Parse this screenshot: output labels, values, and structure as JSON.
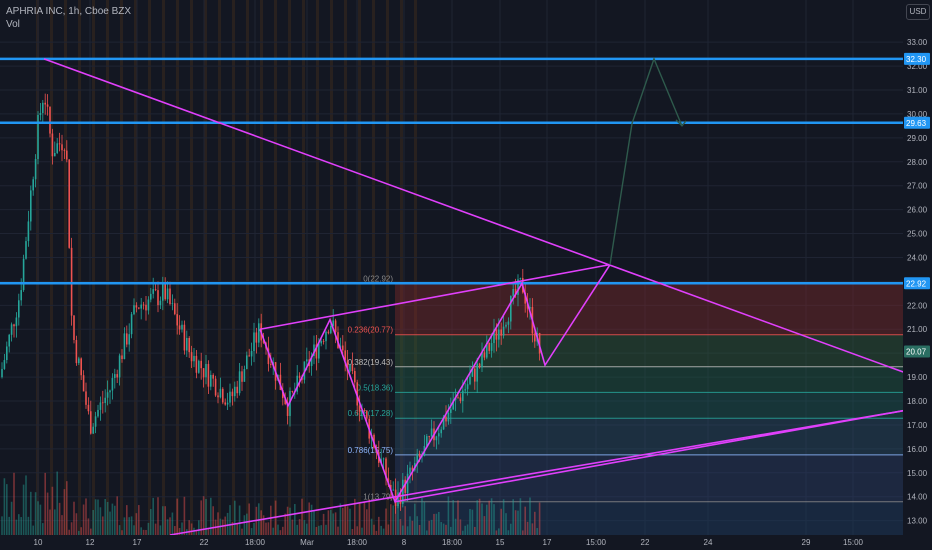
{
  "header": {
    "symbol_line": "APHRIA INC, 1h, Cboe BZX",
    "volume_label": "Vol",
    "currency": "USD"
  },
  "colors": {
    "background": "#131722",
    "grid": "#1f2433",
    "up": "#26a69a",
    "down": "#ef5350",
    "pattern_lines": "#e040fb",
    "horizontal_levels": "#2196f3",
    "projection": "#2e5a4c",
    "axis_text": "#b2b5be"
  },
  "chart_data": {
    "type": "candlestick",
    "symbol": "APHRIA INC",
    "interval": "1h",
    "exchange": "Cboe BZX",
    "ylim": [
      12.4,
      33.8
    ],
    "y_ticks": [
      "13.00",
      "14.00",
      "15.00",
      "16.00",
      "17.00",
      "18.00",
      "19.00",
      "20.00",
      "21.00",
      "22.00",
      "23.00",
      "24.00",
      "25.00",
      "26.00",
      "27.00",
      "28.00",
      "29.00",
      "30.00",
      "31.00",
      "32.00",
      "33.00"
    ],
    "x_ticks": [
      "10",
      "12",
      "17",
      "22",
      "18:00",
      "Mar",
      "18:00",
      "8",
      "18:00",
      "15",
      "17",
      "15:00",
      "22",
      "24",
      "29",
      "15:00"
    ],
    "current_price": "20.07",
    "horizontal_levels": [
      {
        "price": 32.3,
        "label": "32.30"
      },
      {
        "price": 29.63,
        "label": "29.63"
      },
      {
        "price": 22.92,
        "label": "22.92"
      }
    ],
    "fibonacci": [
      {
        "ratio": "0",
        "price": "22.92",
        "label": "0(22.92)"
      },
      {
        "ratio": "0.236",
        "price": "20.77",
        "label": "0.236(20.77)"
      },
      {
        "ratio": "0.382",
        "price": "19.43",
        "label": "0.382(19.43)"
      },
      {
        "ratio": "0.5",
        "price": "18.36",
        "label": "0.5(18.36)"
      },
      {
        "ratio": "0.618",
        "price": "17.28",
        "label": "0.618(17.28)"
      },
      {
        "ratio": "0.786",
        "price": "15.75",
        "label": "0.786(15.75)"
      },
      {
        "ratio": "1",
        "price": "13.79",
        "label": "1(13.79)"
      }
    ],
    "trendlines": [
      {
        "name": "upper-resistance",
        "from": [
          44,
          32.3
        ],
        "to": [
          904,
          19.2
        ]
      },
      {
        "name": "lower-support",
        "from": [
          170,
          12.4
        ],
        "to": [
          904,
          17.6
        ]
      },
      {
        "name": "channel-top",
        "from": [
          260,
          21.0
        ],
        "to": [
          610,
          23.7
        ]
      },
      {
        "name": "channel-bottom",
        "from": [
          395,
          13.79
        ],
        "to": [
          904,
          17.6
        ]
      }
    ],
    "pattern_path": [
      [
        260,
        21.0
      ],
      [
        288,
        17.8
      ],
      [
        330,
        21.4
      ],
      [
        395,
        13.79
      ],
      [
        522,
        22.92
      ],
      [
        545,
        19.5
      ],
      [
        610,
        23.7
      ]
    ],
    "projection_path": [
      [
        610,
        23.7
      ],
      [
        632,
        29.6
      ],
      [
        654,
        32.3
      ],
      [
        682,
        29.5
      ]
    ],
    "candles_seed": 7
  }
}
